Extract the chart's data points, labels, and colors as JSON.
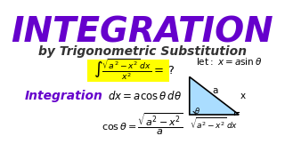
{
  "bg_color": "#ffffff",
  "title": "INTEGRATION",
  "title_color": "#6600cc",
  "subtitle": "by Trigonometric Substitution",
  "subtitle_color": "#333333",
  "left_label": "Integration",
  "left_label_color": "#6600cc",
  "integral_expr": "$\\int \\frac{\\sqrt{a^2 - x^2}\\, dx}{x^2} = ?$",
  "highlight_color": "#ffff00",
  "sub_eq1": "$dx = a\\cos\\theta\\, d\\theta$",
  "sub_eq2": "$\\cos\\theta = \\dfrac{\\sqrt{a^2 - x^2}}{a}$",
  "let_text": "$\\mathrm{let:}\\ x = a\\sin\\theta$",
  "triangle_label_a": "a",
  "triangle_label_x": "x",
  "triangle_label_base": "$\\sqrt{a^2 - x^2}\\, dx$",
  "triangle_fill": "#aaddff",
  "triangle_color": "#000000"
}
